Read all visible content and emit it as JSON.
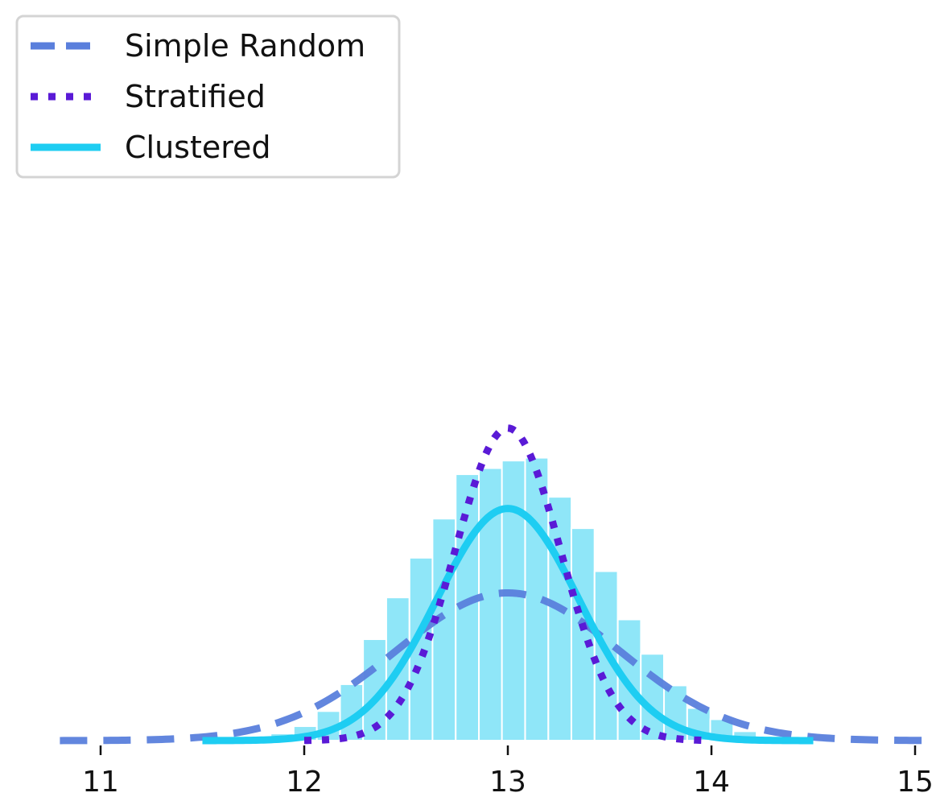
{
  "chart_data": {
    "type": "line",
    "title": "",
    "xlabel": "",
    "ylabel": "",
    "xlim": [
      10.8,
      15.1
    ],
    "ylim": [
      0,
      1.6
    ],
    "grid": false,
    "legend": {
      "placement": "top-left"
    },
    "x_ticks": [
      11,
      12,
      13,
      14,
      15
    ],
    "x_tick_labels": [
      "11",
      "12",
      "13",
      "14",
      "15"
    ],
    "series": [
      {
        "name": "Simple Random",
        "style": "dashed",
        "color": "#5a7fdc",
        "dist": "normal",
        "mean": 13.0,
        "sd": 0.55,
        "x_range": [
          10.8,
          15.1
        ]
      },
      {
        "name": "Stratified",
        "style": "dotted",
        "color": "#5a1ad6",
        "dist": "normal",
        "mean": 13.0,
        "sd": 0.26,
        "x_range": [
          12.0,
          14.0
        ]
      },
      {
        "name": "Clustered",
        "style": "solid",
        "color": "#1ecdf2",
        "dist": "normal",
        "mean": 13.0,
        "sd": 0.35,
        "x_range": [
          11.5,
          14.5
        ]
      }
    ],
    "histogram": {
      "color": "#8fe6f8",
      "bin_width": 0.1137,
      "bins": [
        {
          "x0": 11.38,
          "density": 0.002
        },
        {
          "x0": 11.494,
          "density": 0.002
        },
        {
          "x0": 11.607,
          "density": 0.004
        },
        {
          "x0": 11.721,
          "density": 0.008
        },
        {
          "x0": 11.835,
          "density": 0.035
        },
        {
          "x0": 11.948,
          "density": 0.071
        },
        {
          "x0": 12.062,
          "density": 0.145
        },
        {
          "x0": 12.176,
          "density": 0.277
        },
        {
          "x0": 12.289,
          "density": 0.498
        },
        {
          "x0": 12.403,
          "density": 0.703
        },
        {
          "x0": 12.517,
          "density": 0.898
        },
        {
          "x0": 12.63,
          "density": 1.09
        },
        {
          "x0": 12.744,
          "density": 1.308
        },
        {
          "x0": 12.858,
          "density": 1.338
        },
        {
          "x0": 12.971,
          "density": 1.375
        },
        {
          "x0": 13.085,
          "density": 1.389
        },
        {
          "x0": 13.199,
          "density": 1.197
        },
        {
          "x0": 13.312,
          "density": 1.043
        },
        {
          "x0": 13.426,
          "density": 0.832
        },
        {
          "x0": 13.54,
          "density": 0.595
        },
        {
          "x0": 13.653,
          "density": 0.426
        },
        {
          "x0": 13.767,
          "density": 0.271
        },
        {
          "x0": 13.881,
          "density": 0.16
        },
        {
          "x0": 13.994,
          "density": 0.105
        },
        {
          "x0": 14.108,
          "density": 0.046
        },
        {
          "x0": 14.222,
          "density": 0.018
        },
        {
          "x0": 14.335,
          "density": 0.006
        },
        {
          "x0": 14.449,
          "density": 0.003
        },
        {
          "x0": 14.563,
          "density": 0.002
        },
        {
          "x0": 14.676,
          "density": 0.002
        }
      ]
    }
  }
}
